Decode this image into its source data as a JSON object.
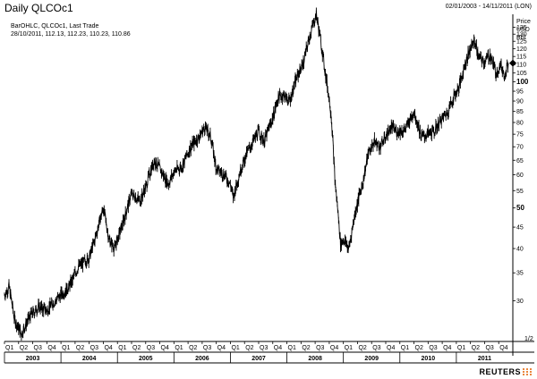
{
  "header": {
    "title": "Daily QLCOc1",
    "date_range": "02/01/2003 - 14/11/2011 (LON)",
    "series_line": "BarOHLC, QLCOc1, Last Trade",
    "last_bar_line": "28/10/2011, 112.13, 112.23, 110.23, 110.86"
  },
  "axis_header": [
    "Price",
    "USD",
    "Bbl"
  ],
  "brand": "REUTERS",
  "chart_data": {
    "type": "line",
    "title": "Daily QLCOc1",
    "x_labels_years": [
      "2003",
      "2004",
      "2005",
      "2006",
      "2007",
      "2008",
      "2009",
      "2010",
      "2011"
    ],
    "quarter_labels": [
      "Q1",
      "Q2",
      "Q3",
      "Q4"
    ],
    "y_ticks": [
      30,
      35,
      40,
      45,
      50,
      55,
      60,
      65,
      70,
      75,
      80,
      85,
      90,
      95,
      100,
      105,
      110,
      115,
      120,
      125,
      130,
      135
    ],
    "y_scale": "log",
    "ylim": [
      24,
      145
    ],
    "bold_ticks": [
      50,
      100
    ],
    "bottom_tick_label": "1/2",
    "last_marker_value": 110.86,
    "series": [
      {
        "values": [
          [
            2003.0,
            31.0
          ],
          [
            2003.08,
            32.5
          ],
          [
            2003.18,
            27.0
          ],
          [
            2003.3,
            25.0
          ],
          [
            2003.45,
            27.5
          ],
          [
            2003.6,
            29.0
          ],
          [
            2003.75,
            28.5
          ],
          [
            2003.9,
            30.0
          ],
          [
            2004.0,
            31.0
          ],
          [
            2004.15,
            32.5
          ],
          [
            2004.3,
            36.0
          ],
          [
            2004.4,
            37.0
          ],
          [
            2004.5,
            38.0
          ],
          [
            2004.6,
            42.0
          ],
          [
            2004.75,
            50.0
          ],
          [
            2004.85,
            42.0
          ],
          [
            2004.95,
            40.0
          ],
          [
            2005.1,
            46.0
          ],
          [
            2005.25,
            54.0
          ],
          [
            2005.4,
            52.0
          ],
          [
            2005.5,
            56.0
          ],
          [
            2005.65,
            65.0
          ],
          [
            2005.75,
            62.0
          ],
          [
            2005.9,
            57.0
          ],
          [
            2006.0,
            61.0
          ],
          [
            2006.15,
            63.0
          ],
          [
            2006.3,
            70.0
          ],
          [
            2006.45,
            74.0
          ],
          [
            2006.55,
            78.0
          ],
          [
            2006.65,
            74.0
          ],
          [
            2006.75,
            62.0
          ],
          [
            2006.9,
            60.0
          ],
          [
            2007.0,
            57.0
          ],
          [
            2007.05,
            53.0
          ],
          [
            2007.2,
            63.0
          ],
          [
            2007.35,
            70.0
          ],
          [
            2007.5,
            76.0
          ],
          [
            2007.6,
            72.0
          ],
          [
            2007.75,
            82.0
          ],
          [
            2007.85,
            92.0
          ],
          [
            2007.95,
            93.0
          ],
          [
            2008.05,
            90.0
          ],
          [
            2008.15,
            100.0
          ],
          [
            2008.3,
            112.0
          ],
          [
            2008.4,
            128.0
          ],
          [
            2008.52,
            145.0
          ],
          [
            2008.6,
            125.0
          ],
          [
            2008.68,
            105.0
          ],
          [
            2008.78,
            85.0
          ],
          [
            2008.85,
            58.0
          ],
          [
            2008.95,
            41.0
          ],
          [
            2009.0,
            42.0
          ],
          [
            2009.1,
            40.0
          ],
          [
            2009.2,
            48.0
          ],
          [
            2009.35,
            58.0
          ],
          [
            2009.45,
            68.0
          ],
          [
            2009.55,
            72.0
          ],
          [
            2009.65,
            70.0
          ],
          [
            2009.75,
            74.0
          ],
          [
            2009.85,
            78.0
          ],
          [
            2009.95,
            76.0
          ],
          [
            2010.1,
            77.0
          ],
          [
            2010.25,
            85.0
          ],
          [
            2010.38,
            74.0
          ],
          [
            2010.5,
            75.0
          ],
          [
            2010.6,
            76.0
          ],
          [
            2010.7,
            80.0
          ],
          [
            2010.85,
            85.0
          ],
          [
            2010.95,
            92.0
          ],
          [
            2011.05,
            97.0
          ],
          [
            2011.15,
            110.0
          ],
          [
            2011.25,
            120.0
          ],
          [
            2011.32,
            126.0
          ],
          [
            2011.4,
            114.0
          ],
          [
            2011.5,
            112.0
          ],
          [
            2011.6,
            116.0
          ],
          [
            2011.7,
            105.0
          ],
          [
            2011.78,
            110.0
          ],
          [
            2011.85,
            104.0
          ],
          [
            2011.92,
            110.86
          ]
        ]
      }
    ]
  }
}
